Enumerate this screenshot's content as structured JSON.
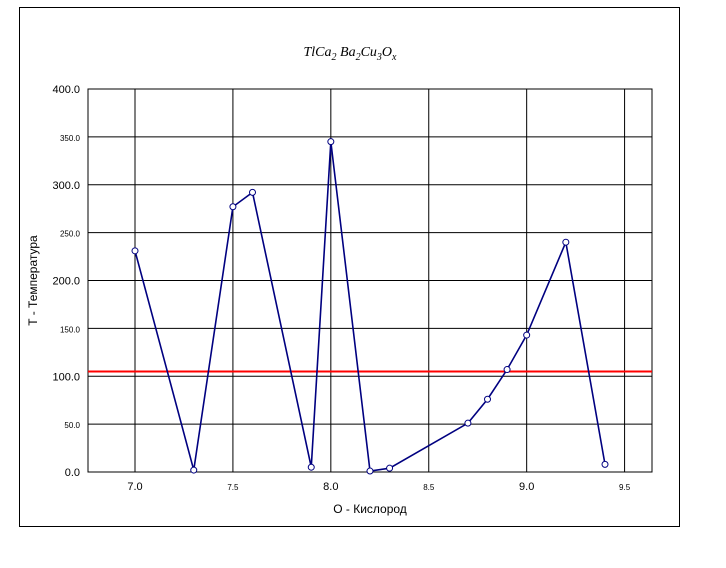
{
  "chart_data": {
    "type": "line",
    "title": {
      "parts": [
        {
          "t": "TlCa",
          "sub": false
        },
        {
          "t": "2",
          "sub": true
        },
        {
          "t": " Ba",
          "sub": false
        },
        {
          "t": "2",
          "sub": true
        },
        {
          "t": "Cu",
          "sub": false
        },
        {
          "t": "3",
          "sub": true
        },
        {
          "t": "O",
          "sub": false
        },
        {
          "t": "x",
          "sub": true
        }
      ]
    },
    "xlabel": "O -  Кислород",
    "ylabel": "T - Температура",
    "xlim": [
      6.76,
      9.64
    ],
    "ylim": [
      0,
      400
    ],
    "grid": true,
    "x_ticks": [
      {
        "v": 7.0,
        "label": "7.0",
        "major": true
      },
      {
        "v": 7.5,
        "label": "7.5",
        "major": false
      },
      {
        "v": 8.0,
        "label": "8.0",
        "major": true
      },
      {
        "v": 8.5,
        "label": "8.5",
        "major": false
      },
      {
        "v": 9.0,
        "label": "9.0",
        "major": true
      },
      {
        "v": 9.5,
        "label": "9.5",
        "major": false
      }
    ],
    "y_ticks": [
      {
        "v": 0,
        "label": "0.0",
        "major": true
      },
      {
        "v": 50,
        "label": "50.0",
        "major": false
      },
      {
        "v": 100,
        "label": "100.0",
        "major": true
      },
      {
        "v": 150,
        "label": "150.0",
        "major": false
      },
      {
        "v": 200,
        "label": "200.0",
        "major": true
      },
      {
        "v": 250,
        "label": "250.0",
        "major": false
      },
      {
        "v": 300,
        "label": "300.0",
        "major": true
      },
      {
        "v": 350,
        "label": "350.0",
        "major": false
      },
      {
        "v": 400,
        "label": "400.0",
        "major": true
      }
    ],
    "series": [
      {
        "color": "#000080",
        "marker": "circle",
        "points": [
          [
            7.0,
            231
          ],
          [
            7.3,
            2
          ],
          [
            7.5,
            277
          ],
          [
            7.6,
            292
          ],
          [
            7.9,
            5
          ],
          [
            8.0,
            345
          ],
          [
            8.2,
            1
          ],
          [
            8.3,
            4
          ],
          [
            8.7,
            51
          ],
          [
            8.8,
            76
          ],
          [
            8.9,
            107
          ],
          [
            9.0,
            143
          ],
          [
            9.2,
            240
          ],
          [
            9.4,
            8
          ]
        ]
      }
    ],
    "reference_line": {
      "y": 105,
      "color": "#ff0000"
    }
  }
}
